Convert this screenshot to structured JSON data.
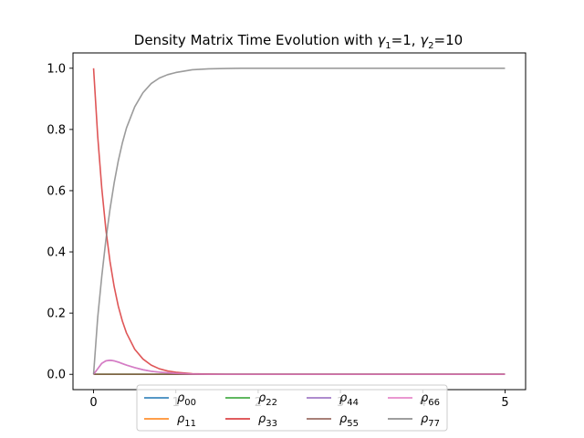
{
  "chart_data": {
    "type": "line",
    "title": "Density Matrix Time Evolution with γ₁=1, γ₂=10",
    "title_parts": {
      "prefix": "Density Matrix Time Evolution with ",
      "g1_sym": "γ",
      "g1_sub": "1",
      "g1_val": "=1, ",
      "g2_sym": "γ",
      "g2_sub": "2",
      "g2_val": "=10"
    },
    "xlabel": "",
    "ylabel": "",
    "xlim": [
      -0.25,
      5.25
    ],
    "ylim": [
      -0.05,
      1.05
    ],
    "xticks": [
      0,
      1,
      2,
      3,
      4,
      5
    ],
    "xtick_labels": [
      "0",
      "1",
      "2",
      "3",
      "4",
      "5"
    ],
    "yticks": [
      0.0,
      0.2,
      0.4,
      0.6,
      0.8,
      1.0
    ],
    "ytick_labels": [
      "0.0",
      "0.2",
      "0.4",
      "0.6",
      "0.8",
      "1.0"
    ],
    "grid": false,
    "legend_placement": "bottom-center",
    "legend_columns": 4,
    "x": [
      0,
      0.05,
      0.1,
      0.15,
      0.2,
      0.25,
      0.3,
      0.35,
      0.4,
      0.5,
      0.6,
      0.7,
      0.8,
      0.9,
      1.0,
      1.2,
      1.4,
      1.6,
      1.8,
      2.0,
      2.5,
      3.0,
      3.5,
      4.0,
      4.5,
      5.0
    ],
    "series": [
      {
        "name": "ρ",
        "sub": "00",
        "color": "#1f77b4",
        "values": [
          0,
          0,
          0,
          0,
          0,
          0,
          0,
          0,
          0,
          0,
          0,
          0,
          0,
          0,
          0,
          0,
          0,
          0,
          0,
          0,
          0,
          0,
          0,
          0,
          0,
          0
        ]
      },
      {
        "name": "ρ",
        "sub": "11",
        "color": "#ff7f0e",
        "values": [
          0,
          0,
          0,
          0,
          0,
          0,
          0,
          0,
          0,
          0,
          0,
          0,
          0,
          0,
          0,
          0,
          0,
          0,
          0,
          0,
          0,
          0,
          0,
          0,
          0,
          0
        ]
      },
      {
        "name": "ρ",
        "sub": "22",
        "color": "#2ca02c",
        "values": [
          0,
          0,
          0,
          0,
          0,
          0,
          0,
          0,
          0,
          0,
          0,
          0,
          0,
          0,
          0,
          0,
          0,
          0,
          0,
          0,
          0,
          0,
          0,
          0,
          0,
          0
        ]
      },
      {
        "name": "ρ",
        "sub": "33",
        "color": "#d62728",
        "values": [
          1.0,
          0.779,
          0.607,
          0.472,
          0.368,
          0.287,
          0.223,
          0.174,
          0.135,
          0.082,
          0.05,
          0.03,
          0.018,
          0.011,
          0.007,
          0.002,
          0.001,
          0.0,
          0.0,
          0.0,
          0.0,
          0.0,
          0.0,
          0.0,
          0.0,
          0.0
        ]
      },
      {
        "name": "ρ",
        "sub": "44",
        "color": "#9467bd",
        "values": [
          0,
          0.018,
          0.036,
          0.044,
          0.046,
          0.044,
          0.04,
          0.035,
          0.03,
          0.022,
          0.015,
          0.01,
          0.007,
          0.005,
          0.003,
          0.001,
          0.0,
          0.0,
          0.0,
          0.0,
          0.0,
          0.0,
          0.0,
          0.0,
          0.0,
          0.0
        ]
      },
      {
        "name": "ρ",
        "sub": "55",
        "color": "#8c564b",
        "values": [
          0,
          0,
          0,
          0,
          0,
          0,
          0,
          0,
          0,
          0,
          0,
          0,
          0,
          0,
          0,
          0,
          0,
          0,
          0,
          0,
          0,
          0,
          0,
          0,
          0,
          0
        ]
      },
      {
        "name": "ρ",
        "sub": "66",
        "color": "#e377c2",
        "values": [
          0,
          0.018,
          0.036,
          0.044,
          0.046,
          0.044,
          0.04,
          0.035,
          0.03,
          0.022,
          0.015,
          0.01,
          0.007,
          0.005,
          0.003,
          0.001,
          0.0,
          0.0,
          0.0,
          0.0,
          0.0,
          0.0,
          0.0,
          0.0,
          0.0,
          0.0
        ]
      },
      {
        "name": "ρ",
        "sub": "77",
        "color": "#7f7f7f",
        "values": [
          0,
          0.185,
          0.321,
          0.44,
          0.54,
          0.625,
          0.697,
          0.756,
          0.805,
          0.874,
          0.92,
          0.95,
          0.968,
          0.979,
          0.986,
          0.995,
          0.998,
          0.999,
          1.0,
          1.0,
          1.0,
          1.0,
          1.0,
          1.0,
          1.0,
          1.0
        ]
      }
    ]
  }
}
